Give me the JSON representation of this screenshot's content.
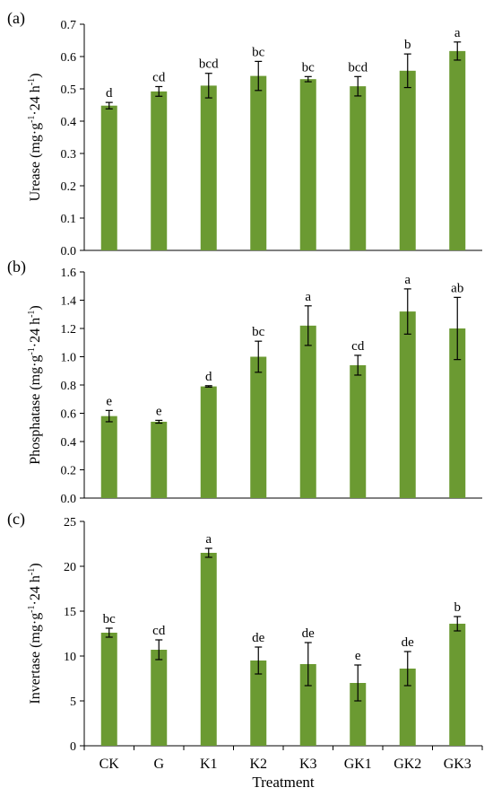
{
  "chart_data": [
    {
      "type": "bar",
      "panel_label": "(a)",
      "ylabel": "Urease (mg·g-1·24 h-1)",
      "ylabel_parts": [
        "Urease (mg·g",
        "-1",
        "·24 h",
        "-1",
        ")"
      ],
      "categories": [
        "CK",
        "G",
        "K1",
        "K2",
        "K3",
        "GK1",
        "GK2",
        "GK3"
      ],
      "values": [
        0.448,
        0.492,
        0.51,
        0.54,
        0.53,
        0.508,
        0.556,
        0.617
      ],
      "errors": [
        0.01,
        0.015,
        0.038,
        0.045,
        0.008,
        0.03,
        0.052,
        0.028
      ],
      "letters": [
        "d",
        "cd",
        "bcd",
        "bc",
        "bc",
        "bcd",
        "b",
        "a"
      ],
      "ylim": [
        0,
        0.7
      ],
      "yticks": [
        "0.0",
        "0.1",
        "0.2",
        "0.3",
        "0.4",
        "0.5",
        "0.6",
        "0.7"
      ],
      "bar_color": "#6b9a32"
    },
    {
      "type": "bar",
      "panel_label": "(b)",
      "ylabel": "Phosphatase (mg·g-1·24 h-1)",
      "ylabel_parts": [
        "Phosphatase (mg·g",
        "-1",
        "·24 h",
        "-1",
        ")"
      ],
      "categories": [
        "CK",
        "G",
        "K1",
        "K2",
        "K3",
        "GK1",
        "GK2",
        "GK3"
      ],
      "values": [
        0.58,
        0.54,
        0.79,
        1.0,
        1.22,
        0.94,
        1.32,
        1.2
      ],
      "errors": [
        0.04,
        0.01,
        0.005,
        0.11,
        0.14,
        0.07,
        0.16,
        0.22
      ],
      "letters": [
        "e",
        "e",
        "d",
        "bc",
        "a",
        "cd",
        "a",
        "ab"
      ],
      "ylim": [
        0,
        1.6
      ],
      "yticks": [
        "0.0",
        "0.2",
        "0.4",
        "0.6",
        "0.8",
        "1.0",
        "1.2",
        "1.4",
        "1.6"
      ],
      "bar_color": "#6b9a32"
    },
    {
      "type": "bar",
      "panel_label": "(c)",
      "ylabel": "Invertase (mg·g-1·24 h-1)",
      "ylabel_parts": [
        "Invertase (mg·g",
        "-1",
        "·24 h",
        "-1",
        ")"
      ],
      "categories": [
        "CK",
        "G",
        "K1",
        "K2",
        "K3",
        "GK1",
        "GK2",
        "GK3"
      ],
      "values": [
        12.6,
        10.7,
        21.5,
        9.5,
        9.1,
        7.0,
        8.6,
        13.6
      ],
      "errors": [
        0.5,
        1.1,
        0.5,
        1.5,
        2.4,
        2.0,
        1.9,
        0.8
      ],
      "letters": [
        "bc",
        "cd",
        "a",
        "de",
        "de",
        "e",
        "de",
        "b"
      ],
      "ylim": [
        0,
        25
      ],
      "yticks": [
        "0",
        "5",
        "10",
        "15",
        "20",
        "25"
      ],
      "xticks": [
        "CK",
        "G",
        "K1",
        "K2",
        "K3",
        "GK1",
        "GK2",
        "GK3"
      ],
      "xlabel": "Treatment",
      "bar_color": "#6b9a32"
    }
  ]
}
